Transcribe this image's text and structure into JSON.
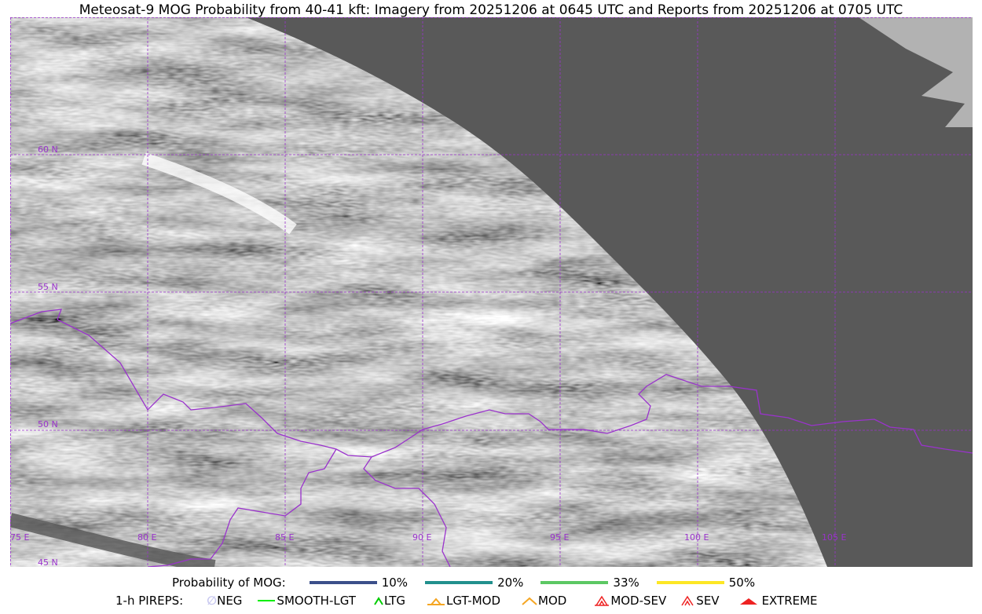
{
  "title": "Meteosat-9 MOG Probability from 40-41 kft: Imagery from 20251206 at 0645 UTC and Reports from 20251206 at 0705 UTC",
  "map": {
    "gridline_color": "#9a33cc",
    "space_color": "#595959",
    "lon_labels": [
      "75 E",
      "80 E",
      "85 E",
      "90 E",
      "95 E",
      "100 E",
      "105 E"
    ],
    "lat_labels": [
      "60 N",
      "55 N",
      "50 N",
      "45 N"
    ]
  },
  "legend": {
    "probability_label": "Probability of MOG:",
    "probability": [
      {
        "label": "10%",
        "color": "#3b4f8a"
      },
      {
        "label": "20%",
        "color": "#21908d"
      },
      {
        "label": "33%",
        "color": "#5cc863"
      },
      {
        "label": "50%",
        "color": "#fde725"
      }
    ],
    "pireps_label": "1-h PIREPS:",
    "pireps": [
      {
        "label": "NEG",
        "color": "#c8c8f0",
        "icon": "neg-icon"
      },
      {
        "label": "SMOOTH-LGT",
        "color": "#00ee00",
        "icon": "smooth-lgt-icon"
      },
      {
        "label": "LTG",
        "color": "#00cc00",
        "icon": "ltg-icon"
      },
      {
        "label": "LGT-MOD",
        "color": "#f5a623",
        "icon": "lgt-mod-icon"
      },
      {
        "label": "MOD",
        "color": "#f5a623",
        "icon": "mod-icon"
      },
      {
        "label": "MOD-SEV",
        "color": "#ee2222",
        "icon": "mod-sev-icon"
      },
      {
        "label": "SEV",
        "color": "#ee2222",
        "icon": "sev-icon"
      },
      {
        "label": "EXTREME",
        "color": "#ee2222",
        "icon": "extreme-icon"
      }
    ]
  }
}
